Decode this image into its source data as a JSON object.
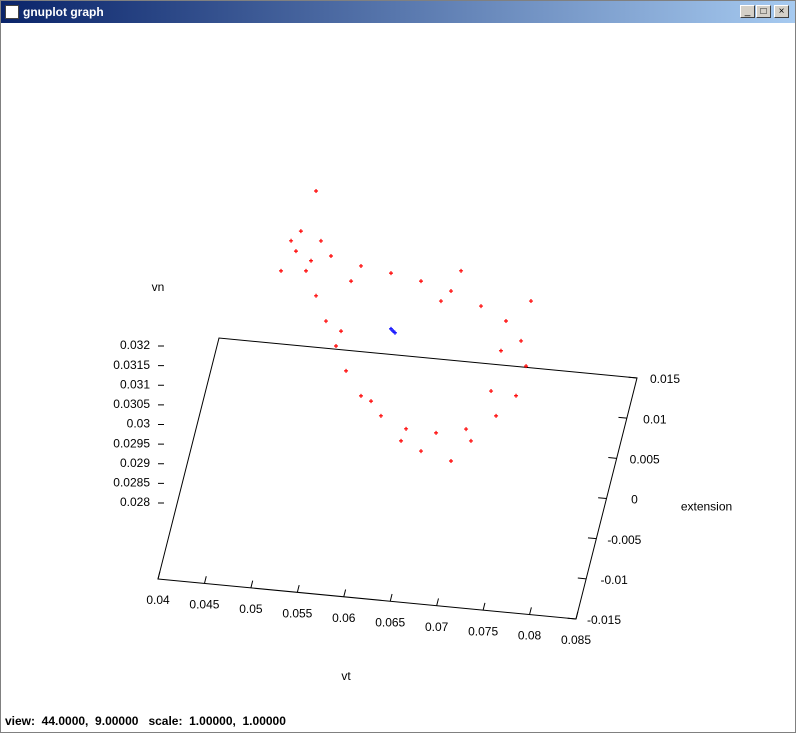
{
  "window": {
    "title": "gnuplot graph"
  },
  "status": "view:  44.0000,  9.00000   scale:  1.00000,  1.00000",
  "chart_data": {
    "type": "scatter3d",
    "xlabel": "vt",
    "ylabel": "extension",
    "zlabel": "vn",
    "xlim": [
      0.04,
      0.085
    ],
    "ylim": [
      -0.015,
      0.015
    ],
    "zlim": [
      0.028,
      0.032
    ],
    "xticks": [
      0.04,
      0.045,
      0.05,
      0.055,
      0.06,
      0.065,
      0.07,
      0.075,
      0.08,
      0.085
    ],
    "yticks": [
      -0.015,
      -0.01,
      -0.005,
      0,
      0.005,
      0.01,
      0.015
    ],
    "zticks": [
      0.028,
      0.0285,
      0.029,
      0.0295,
      0.03,
      0.0305,
      0.031,
      0.0315,
      0.032
    ],
    "series": [
      {
        "color": "#ff0000",
        "x": [
          0.0521,
          0.05157,
          0.05319,
          0.05534,
          0.05857,
          0.0618,
          0.06503,
          0.06826,
          0.07149,
          0.07418,
          0.0758,
          0.07634,
          0.07526,
          0.07311,
          0.06988,
          0.06665,
          0.06342,
          0.06072,
          0.05857,
          0.05696,
          0.05588,
          0.0548,
          0.05373,
          0.05265,
          0.05104,
          0.05373,
          0.0575,
          0.06718,
          0.07364,
          0.07257,
          0.06503,
          0.06826,
          0.05965,
          0.05642,
          0.04996,
          0.07687,
          0.07041,
          0.06288,
          0.05426,
          0.06934
        ],
        "y": [
          0,
          0,
          0,
          0,
          0,
          0,
          0,
          0,
          0,
          0,
          0,
          0,
          0,
          0,
          0,
          0,
          0,
          0,
          0,
          0,
          0,
          0,
          0,
          0,
          0,
          0,
          0,
          0,
          0,
          0,
          0,
          0,
          0,
          0,
          0,
          0,
          0,
          0,
          0,
          0
        ],
        "z": [
          0.03213,
          0.03161,
          0.0314,
          0.03157,
          0.03139,
          0.03128,
          0.03115,
          0.03097,
          0.03066,
          0.03034,
          0.02987,
          0.02924,
          0.02846,
          0.0279,
          0.02749,
          0.02732,
          0.02735,
          0.02762,
          0.02808,
          0.02868,
          0.02929,
          0.0299,
          0.03052,
          0.03113,
          0.03186,
          0.03319,
          0.03098,
          0.03069,
          0.02957,
          0.02852,
          0.02682,
          0.02664,
          0.02797,
          0.02968,
          0.03107,
          0.03091,
          0.0272,
          0.02703,
          0.03193,
          0.03151
        ]
      },
      {
        "color": "#0000ff",
        "x": [
          0.0618,
          0.06202,
          0.06223
        ],
        "y": [
          0,
          0,
          0
        ],
        "z": [
          0.02986,
          0.02981,
          0.02977
        ]
      }
    ]
  }
}
